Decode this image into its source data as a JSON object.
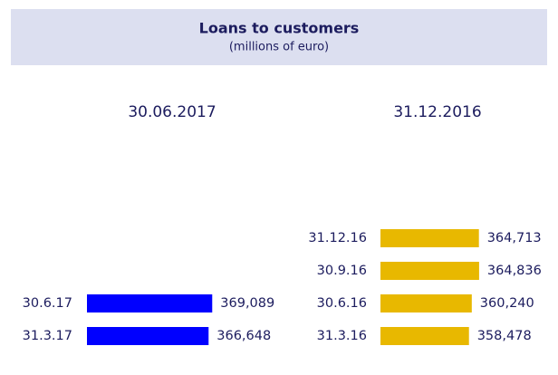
{
  "header": {
    "title": "Loans to customers",
    "subtitle": "(millions of euro)"
  },
  "chart_data": [
    {
      "type": "bar",
      "title": "30.06.2017",
      "categories": [
        "30.6.17",
        "31.3.17"
      ],
      "values": [
        369089,
        366648
      ],
      "value_labels": [
        "369,089",
        "366,648"
      ],
      "color": "#0000ff",
      "xlim": [
        285000,
        375000
      ]
    },
    {
      "type": "bar",
      "title": "31.12.2016",
      "categories": [
        "31.12.16",
        "30.9.16",
        "30.6.16",
        "31.3.16"
      ],
      "values": [
        364713,
        364836,
        360240,
        358478
      ],
      "value_labels": [
        "364,713",
        "364,836",
        "360,240",
        "358,478"
      ],
      "color": "#e8b800",
      "xlim": [
        303000,
        370000
      ]
    }
  ]
}
